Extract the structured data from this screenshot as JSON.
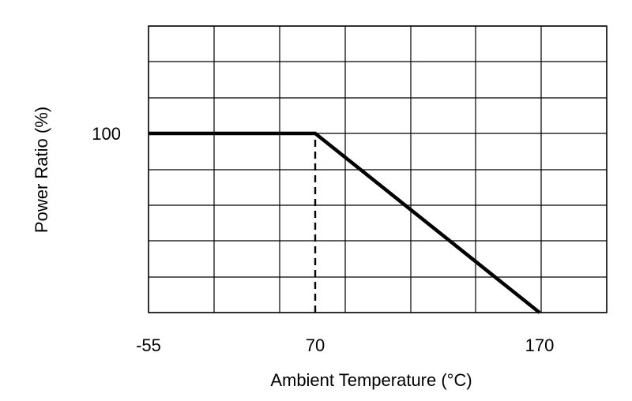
{
  "chart_data": {
    "type": "line",
    "xlabel": "Ambient Temperature (°C)",
    "ylabel": "Power Ratio (%)",
    "x_ticks": [
      -55,
      70,
      170
    ],
    "x_tick_labels": [
      "-55",
      "70",
      "170"
    ],
    "y_ticks": [
      100
    ],
    "y_tick_labels": [
      "100"
    ],
    "xlim": [
      -55,
      190
    ],
    "ylim": [
      0,
      160
    ],
    "grid": true,
    "series": [
      {
        "x": [
          -55,
          70,
          170
        ],
        "y": [
          100,
          100,
          0
        ]
      }
    ],
    "reference_lines": [
      {
        "style": "dashed",
        "x": [
          70,
          70
        ],
        "y": [
          0,
          100
        ]
      }
    ]
  }
}
